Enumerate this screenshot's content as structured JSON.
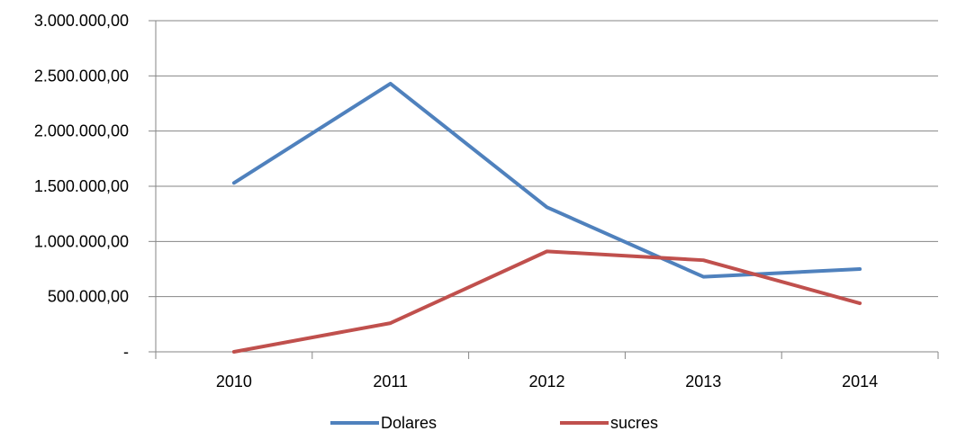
{
  "chart_data": {
    "type": "line",
    "categories": [
      "2010",
      "2011",
      "2012",
      "2013",
      "2014"
    ],
    "series": [
      {
        "name": "Dolares",
        "color": "#4F81BD",
        "values": [
          1530000,
          2430000,
          1310000,
          680000,
          750000
        ]
      },
      {
        "name": "sucres",
        "color": "#C0504D",
        "values": [
          0,
          260000,
          910000,
          830000,
          440000
        ]
      }
    ],
    "ylim": [
      0,
      3000000
    ],
    "yticks": [
      {
        "value": 0,
        "label": "-"
      },
      {
        "value": 500000,
        "label": "500.000,00"
      },
      {
        "value": 1000000,
        "label": "1.000.000,00"
      },
      {
        "value": 1500000,
        "label": "1.500.000,00"
      },
      {
        "value": 2000000,
        "label": "2.000.000,00"
      },
      {
        "value": 2500000,
        "label": "2.500.000,00"
      },
      {
        "value": 3000000,
        "label": "3.000.000,00"
      }
    ],
    "grid": true,
    "legend": "bottom"
  }
}
